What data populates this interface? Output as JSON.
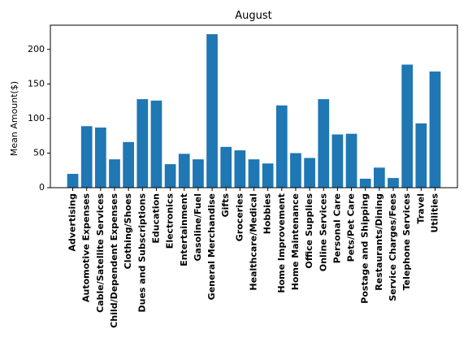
{
  "chart_data": {
    "type": "bar",
    "title": "August",
    "xlabel": "",
    "ylabel": "Mean Amount($)",
    "ylim": [
      0,
      235
    ],
    "yticks": [
      0,
      50,
      100,
      150,
      200
    ],
    "grid": false,
    "bar_color": "#1f77b4",
    "categories": [
      "Advertising",
      "Automotive Expenses",
      "Cable/Satellite Services",
      "Child/Dependent Expenses",
      "Clothing/Shoes",
      "Dues and Subscriptions",
      "Education",
      "Electronics",
      "Entertainment",
      "Gasoline/Fuel",
      "General Merchandise",
      "Gifts",
      "Groceries",
      "Healthcare/Medical",
      "Hobbies",
      "Home Improvement",
      "Home Maintenance",
      "Office Supplies",
      "Online Services",
      "Personal Care",
      "Pets/Pet Care",
      "Postage and Shipping",
      "Restaurants/Dining",
      "Service Charges/Fees",
      "Telephone Services",
      "Travel",
      "Utilities"
    ],
    "values": [
      20,
      89,
      87,
      41,
      66,
      128,
      126,
      34,
      49,
      41,
      222,
      59,
      54,
      41,
      35,
      119,
      50,
      43,
      128,
      77,
      78,
      13,
      29,
      14,
      178,
      93,
      168
    ]
  }
}
